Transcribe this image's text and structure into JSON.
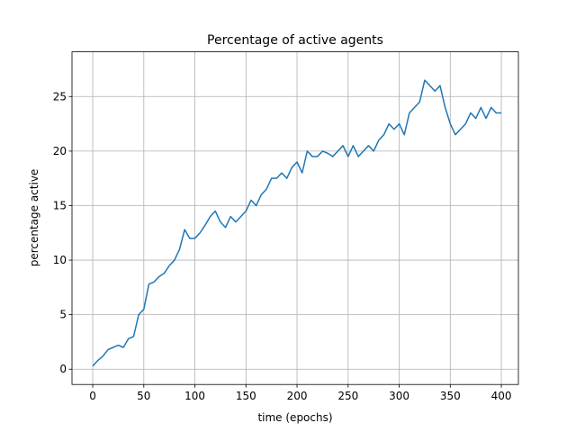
{
  "chart_data": {
    "type": "line",
    "title": "Percentage of active agents",
    "x_label": "time (epochs)",
    "y_label": "percentage active",
    "x": [
      0,
      5,
      10,
      15,
      20,
      25,
      30,
      35,
      40,
      45,
      50,
      55,
      60,
      65,
      70,
      75,
      80,
      85,
      90,
      95,
      100,
      105,
      110,
      115,
      120,
      125,
      130,
      135,
      140,
      145,
      150,
      155,
      160,
      165,
      170,
      175,
      180,
      185,
      190,
      195,
      200,
      205,
      210,
      215,
      220,
      225,
      230,
      235,
      240,
      245,
      250,
      255,
      260,
      265,
      270,
      275,
      280,
      285,
      290,
      295,
      300,
      305,
      310,
      315,
      320,
      325,
      330,
      335,
      340,
      345,
      350,
      355,
      360,
      365,
      370,
      375,
      380,
      385,
      390,
      395,
      400
    ],
    "series": [
      {
        "name": "percentage active",
        "color": "#1f77b4",
        "values": [
          0.3,
          0.8,
          1.2,
          1.8,
          2.0,
          2.2,
          2.0,
          2.8,
          3.0,
          5.0,
          5.5,
          7.8,
          8.0,
          8.5,
          8.8,
          9.5,
          10.0,
          11.0,
          12.8,
          12.0,
          12.0,
          12.5,
          13.2,
          14.0,
          14.5,
          13.5,
          13.0,
          14.0,
          13.5,
          14.0,
          14.5,
          15.5,
          15.0,
          16.0,
          16.5,
          17.5,
          17.5,
          18.0,
          17.5,
          18.5,
          19.0,
          18.0,
          20.0,
          19.5,
          19.5,
          20.0,
          19.8,
          19.5,
          20.0,
          20.5,
          19.5,
          20.5,
          19.5,
          20.0,
          20.5,
          20.0,
          21.0,
          21.5,
          22.5,
          22.0,
          22.5,
          21.5,
          23.5,
          24.0,
          24.5,
          26.5,
          26.0,
          25.5,
          26.0,
          24.0,
          22.5,
          21.5,
          22.0,
          22.5,
          23.5,
          23.0,
          24.0,
          23.0,
          24.0,
          23.5,
          23.5
        ]
      }
    ],
    "xlim": [
      -20.3,
      416.7
    ],
    "ylim": [
      -1.4,
      29.1
    ],
    "xticks": [
      0,
      50,
      100,
      150,
      200,
      250,
      300,
      350,
      400
    ],
    "yticks": [
      0,
      5,
      10,
      15,
      20,
      25
    ],
    "grid": true
  }
}
